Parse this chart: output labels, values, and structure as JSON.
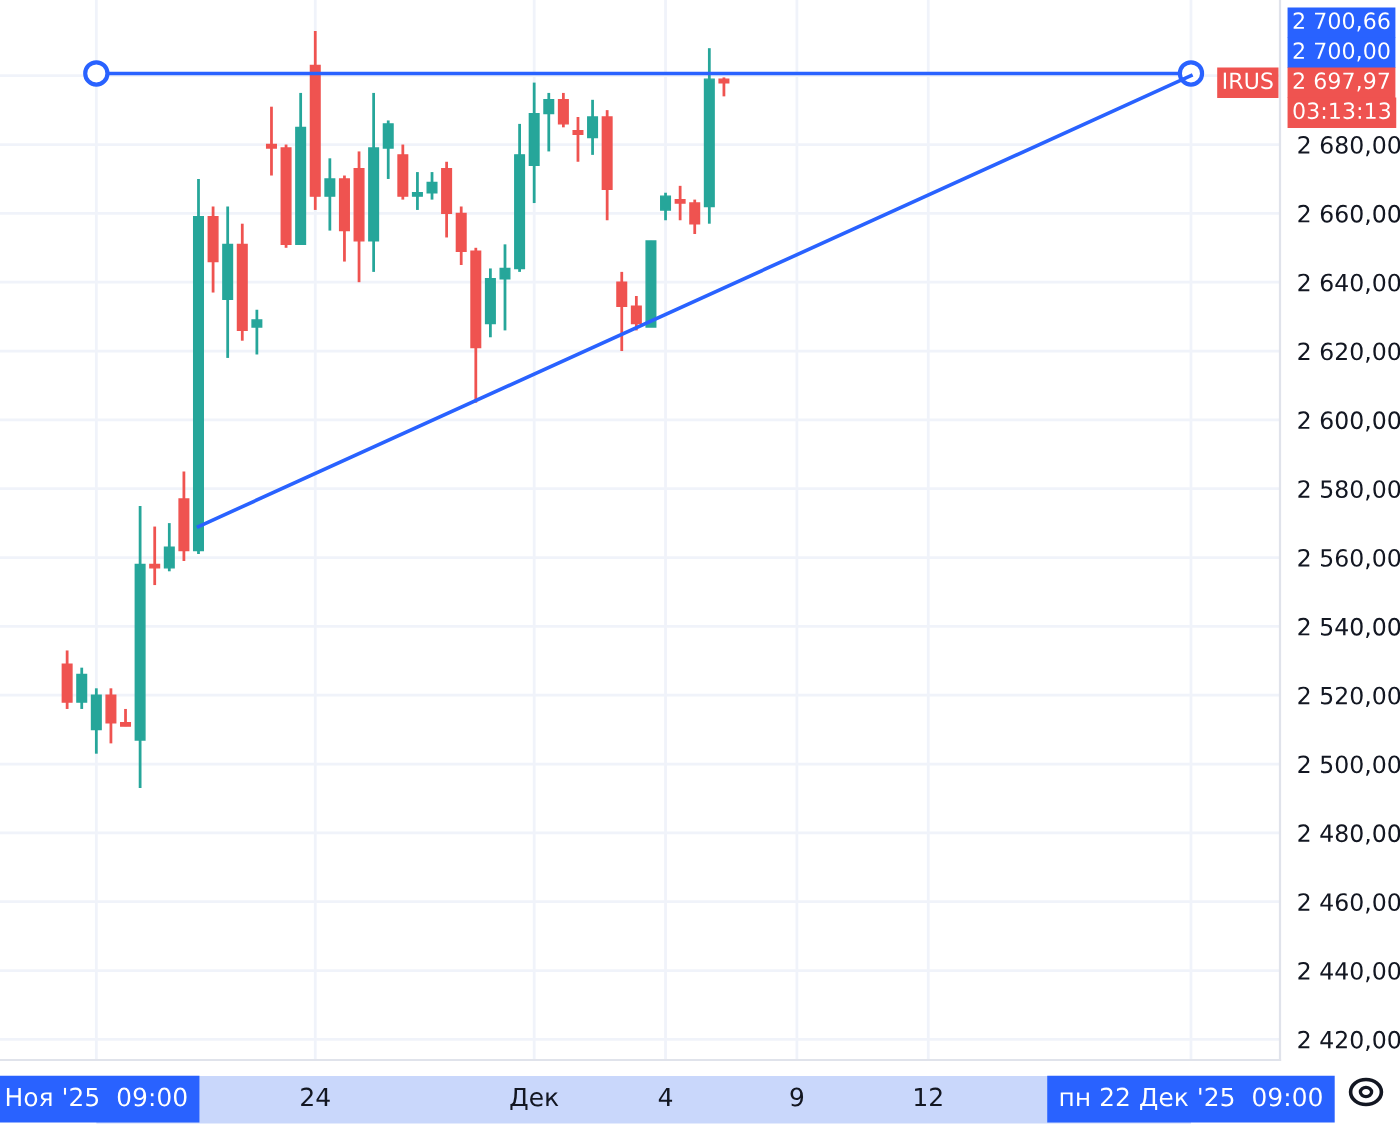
{
  "chart_data": {
    "type": "candlestick",
    "categories": [
      null,
      null,
      "Ноя '25  09:00",
      null,
      null,
      null,
      null,
      null,
      null,
      null,
      null,
      null,
      null,
      null,
      null,
      null,
      null,
      "24",
      null,
      null,
      null,
      null,
      null,
      null,
      null,
      null,
      null,
      null,
      null,
      null,
      null,
      null,
      "Дек",
      null,
      null,
      null,
      null,
      null,
      null,
      null,
      null,
      "4",
      null,
      null,
      null,
      null,
      null,
      null,
      null,
      null,
      "9",
      null,
      null,
      null,
      null,
      null,
      null,
      null,
      null,
      "12",
      null,
      null,
      null,
      null,
      null,
      null,
      null,
      null,
      null,
      null,
      null,
      null,
      null,
      null,
      null,
      null,
      null,
      "пн 22 Дек '25  09:00",
      null,
      null,
      null,
      null,
      null,
      null
    ],
    "ohlc": [
      [
        2529,
        2533,
        2516,
        2518
      ],
      [
        2518,
        2528,
        2516,
        2526
      ],
      [
        2510,
        2522,
        2503,
        2520
      ],
      [
        2520,
        2522,
        2506,
        2512
      ],
      [
        2512,
        2516,
        2511,
        2511
      ],
      [
        2507,
        2575,
        2493,
        2558
      ],
      [
        2558,
        2569,
        2552,
        2557
      ],
      [
        2557,
        2570,
        2556,
        2563
      ],
      [
        2577,
        2585,
        2559,
        2562
      ],
      [
        2562,
        2670,
        2561,
        2659
      ],
      [
        2659,
        2662,
        2637,
        2646
      ],
      [
        2635,
        2662,
        2618,
        2651
      ],
      [
        2651,
        2657,
        2623,
        2626
      ],
      [
        2627,
        2632,
        2619,
        2629
      ],
      [
        2680,
        2691,
        2671,
        2679
      ],
      [
        2679,
        2680,
        2650,
        2651
      ],
      [
        2651,
        2695,
        2651,
        2685
      ],
      [
        2703,
        2713,
        2661,
        2665
      ],
      [
        2665,
        2676,
        2655,
        2670
      ],
      [
        2670,
        2671,
        2646,
        2655
      ],
      [
        2673,
        2678,
        2640,
        2652
      ],
      [
        2652,
        2695,
        2643,
        2679
      ],
      [
        2679,
        2687,
        2670,
        2686
      ],
      [
        2677,
        2680,
        2664,
        2665
      ],
      [
        2665,
        2672,
        2661,
        2666
      ],
      [
        2666,
        2672,
        2664,
        2669
      ],
      [
        2673,
        2675,
        2653,
        2660
      ],
      [
        2660,
        2662,
        2645,
        2649
      ],
      [
        2649,
        2650,
        2605,
        2621
      ],
      [
        2628,
        2644,
        2624,
        2641
      ],
      [
        2641,
        2651,
        2626,
        2644
      ],
      [
        2644,
        2686,
        2643,
        2677
      ],
      [
        2674,
        2698,
        2663,
        2689
      ],
      [
        2689,
        2695,
        2678,
        2693
      ],
      [
        2693,
        2695,
        2685,
        2686
      ],
      [
        2684,
        2688,
        2675,
        2683
      ],
      [
        2682,
        2693,
        2677,
        2688
      ],
      [
        2688,
        2690,
        2658,
        2667
      ],
      [
        2640,
        2643,
        2620,
        2633
      ],
      [
        2633,
        2636,
        2626,
        2628
      ],
      [
        2627,
        2652,
        2627,
        2652
      ],
      [
        2661,
        2666,
        2658,
        2665
      ],
      [
        2664,
        2668,
        2658,
        2663
      ],
      [
        2663,
        2664,
        2654,
        2657
      ],
      [
        2662,
        2708,
        2657,
        2699
      ],
      [
        2699,
        2699.5,
        2694,
        2697.97
      ],
      null,
      null,
      null,
      null,
      null,
      null,
      null,
      null,
      null,
      null,
      null,
      null,
      null,
      null,
      null,
      null,
      null,
      null,
      null,
      null,
      null,
      null,
      null,
      null,
      null,
      null,
      null,
      null,
      null,
      null,
      null,
      null,
      null,
      null,
      null,
      null,
      null,
      null
    ],
    "colors": [
      "#ef5350",
      "#26a69a",
      "#26a69a",
      "#ef5350",
      "#ef5350",
      "#26a69a",
      "#ef5350",
      "#26a69a",
      "#ef5350",
      "#26a69a",
      "#ef5350",
      "#26a69a",
      "#ef5350",
      "#26a69a",
      "#ef5350",
      "#ef5350",
      "#26a69a",
      "#ef5350",
      "#26a69a",
      "#ef5350",
      "#ef5350",
      "#26a69a",
      "#26a69a",
      "#ef5350",
      "#26a69a",
      "#26a69a",
      "#ef5350",
      "#ef5350",
      "#ef5350",
      "#26a69a",
      "#26a69a",
      "#26a69a",
      "#26a69a",
      "#26a69a",
      "#ef5350",
      "#ef5350",
      "#26a69a",
      "#ef5350",
      "#ef5350",
      "#ef5350",
      "#26a69a",
      "#26a69a",
      "#ef5350",
      "#ef5350",
      "#26a69a",
      "#ef5350",
      null,
      null,
      null,
      null,
      null,
      null,
      null,
      null,
      null,
      null,
      null,
      null,
      null,
      null,
      null,
      null,
      null,
      null,
      null,
      null,
      null,
      null,
      null,
      null,
      null,
      null,
      null,
      null,
      null,
      null,
      null,
      null,
      null,
      null,
      null,
      null,
      null,
      null
    ],
    "series": [
      {
        "type": "line",
        "color": "#2962ff",
        "marker": "circle",
        "values": [
          null,
          null,
          2700.66,
          null,
          null,
          null,
          null,
          null,
          null,
          null,
          null,
          null,
          null,
          null,
          null,
          null,
          null,
          null,
          null,
          null,
          null,
          null,
          null,
          null,
          null,
          null,
          null,
          null,
          null,
          null,
          null,
          null,
          null,
          null,
          null,
          null,
          null,
          null,
          null,
          null,
          null,
          null,
          null,
          null,
          null,
          null,
          null,
          null,
          null,
          null,
          null,
          null,
          null,
          null,
          null,
          null,
          null,
          null,
          null,
          null,
          null,
          null,
          null,
          null,
          null,
          null,
          null,
          null,
          null,
          null,
          null,
          null,
          null,
          null,
          null,
          null,
          null,
          2700.66,
          null,
          null,
          null,
          null,
          null,
          null
        ]
      },
      {
        "type": "line",
        "color": "#2962ff",
        "marker": "none",
        "values": [
          null,
          null,
          null,
          null,
          null,
          null,
          null,
          null,
          null,
          2569,
          null,
          null,
          null,
          null,
          null,
          null,
          null,
          null,
          null,
          null,
          null,
          null,
          null,
          null,
          null,
          null,
          null,
          null,
          null,
          null,
          null,
          null,
          null,
          null,
          null,
          null,
          null,
          null,
          null,
          null,
          null,
          null,
          null,
          null,
          null,
          null,
          null,
          null,
          null,
          null,
          null,
          null,
          null,
          null,
          null,
          null,
          null,
          null,
          null,
          null,
          null,
          null,
          null,
          null,
          null,
          null,
          null,
          null,
          null,
          null,
          null,
          null,
          null,
          null,
          null,
          null,
          null,
          2700,
          null,
          null,
          null,
          null,
          null,
          null
        ]
      }
    ],
    "ylim": [
      2414,
      2722
    ],
    "yticks": [
      {
        "value": 2420,
        "label": "2 420,00"
      },
      {
        "value": 2440,
        "label": "2 440,00"
      },
      {
        "value": 2460,
        "label": "2 460,00"
      },
      {
        "value": 2480,
        "label": "2 480,00"
      },
      {
        "value": 2500,
        "label": "2 500,00"
      },
      {
        "value": 2520,
        "label": "2 520,00"
      },
      {
        "value": 2540,
        "label": "2 540,00"
      },
      {
        "value": 2560,
        "label": "2 560,00"
      },
      {
        "value": 2580,
        "label": "2 580,00"
      },
      {
        "value": 2600,
        "label": "2 600,00"
      },
      {
        "value": 2620,
        "label": "2 620,00"
      },
      {
        "value": 2640,
        "label": "2 640,00"
      },
      {
        "value": 2660,
        "label": "2 660,00"
      },
      {
        "value": 2680,
        "label": "2 680,00"
      },
      {
        "value": 2700,
        "label": null
      }
    ],
    "grid": true,
    "annotations": [
      "2 700,66",
      "2 700,00",
      "2 697,97",
      "03:13:13",
      "IRUS"
    ]
  }
}
